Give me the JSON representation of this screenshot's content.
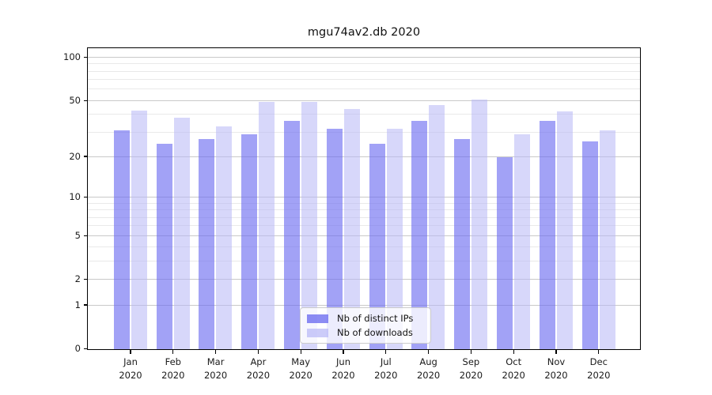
{
  "chart_data": {
    "type": "bar",
    "title": "mgu74av2.db 2020",
    "categories": [
      "Jan",
      "Feb",
      "Mar",
      "Apr",
      "May",
      "Jun",
      "Jul",
      "Aug",
      "Sep",
      "Oct",
      "Nov",
      "Dec"
    ],
    "category_year": "2020",
    "series": [
      {
        "name": "Nb of distinct IPs",
        "color": "#6c6cf0",
        "fill_opacity": 0.63,
        "values": [
          31,
          25,
          27,
          29,
          36,
          32,
          25,
          36,
          27,
          20,
          36,
          26
        ]
      },
      {
        "name": "Nb of downloads",
        "color": "#b7b7f6",
        "fill_opacity": 0.55,
        "values": [
          43,
          38,
          33,
          49,
          49,
          44,
          32,
          47,
          51,
          29,
          42,
          31
        ]
      }
    ],
    "yscale": "symlog",
    "ylim": [
      0,
      115
    ],
    "yticks": [
      0,
      1,
      2,
      5,
      10,
      20,
      50,
      100
    ],
    "minor_gridlines": [
      3,
      4,
      6,
      7,
      8,
      9,
      30,
      40,
      60,
      70,
      80,
      90
    ],
    "grid": {
      "major_color": "#c9c9c9",
      "minor_color": "#e9e9e9"
    },
    "legend_position": "lower center",
    "xlabel": "",
    "ylabel": ""
  }
}
